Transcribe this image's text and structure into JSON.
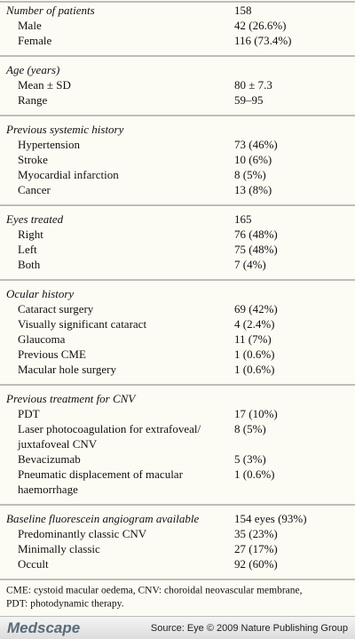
{
  "table": {
    "sections": [
      {
        "title": "Number of patients",
        "value": "158",
        "rows": [
          {
            "label": "Male",
            "value": "42 (26.6%)"
          },
          {
            "label": "Female",
            "value": "116 (73.4%)"
          }
        ]
      },
      {
        "title": "Age (years)",
        "rows": [
          {
            "label": "Mean ± SD",
            "value": "80 ± 7.3"
          },
          {
            "label": "Range",
            "value": "59–95"
          }
        ]
      },
      {
        "title": "Previous systemic history",
        "rows": [
          {
            "label": "Hypertension",
            "value": "73 (46%)"
          },
          {
            "label": "Stroke",
            "value": "10 (6%)"
          },
          {
            "label": "Myocardial infarction",
            "value": "8 (5%)"
          },
          {
            "label": "Cancer",
            "value": "13 (8%)"
          }
        ]
      },
      {
        "title": "Eyes treated",
        "value": "165",
        "rows": [
          {
            "label": "Right",
            "value": "76 (48%)"
          },
          {
            "label": "Left",
            "value": "75 (48%)"
          },
          {
            "label": "Both",
            "value": "7 (4%)"
          }
        ]
      },
      {
        "title": "Ocular history",
        "rows": [
          {
            "label": "Cataract surgery",
            "value": "69 (42%)"
          },
          {
            "label": "Visually significant cataract",
            "value": "4 (2.4%)"
          },
          {
            "label": "Glaucoma",
            "value": "11 (7%)"
          },
          {
            "label": "Previous CME",
            "value": "1 (0.6%)"
          },
          {
            "label": "Macular hole surgery",
            "value": "1 (0.6%)"
          }
        ]
      },
      {
        "title": "Previous treatment for CNV",
        "rows": [
          {
            "label": "PDT",
            "value": "17 (10%)"
          },
          {
            "label": [
              "Laser photocoagulation for extrafoveal/",
              "juxtafoveal CNV"
            ],
            "value": "8 (5%)"
          },
          {
            "label": "Bevacizumab",
            "value": "5 (3%)"
          },
          {
            "label": [
              "Pneumatic displacement of macular",
              "haemorrhage"
            ],
            "value": "1 (0.6%)"
          }
        ]
      },
      {
        "title": "Baseline fluorescein angiogram available",
        "value": "154 eyes (93%)",
        "rows": [
          {
            "label": "Predominantly classic CNV",
            "value": "35 (23%)"
          },
          {
            "label": "Minimally classic",
            "value": "27 (17%)"
          },
          {
            "label": "Occult",
            "value": "92 (60%)"
          }
        ]
      }
    ],
    "footnote": [
      "CME: cystoid macular oedema, CNV: choroidal neovascular membrane,",
      "PDT: photodynamic therapy."
    ]
  },
  "footer": {
    "logo": "Medscape",
    "source": "Source: Eye © 2009 Nature Publishing Group"
  }
}
